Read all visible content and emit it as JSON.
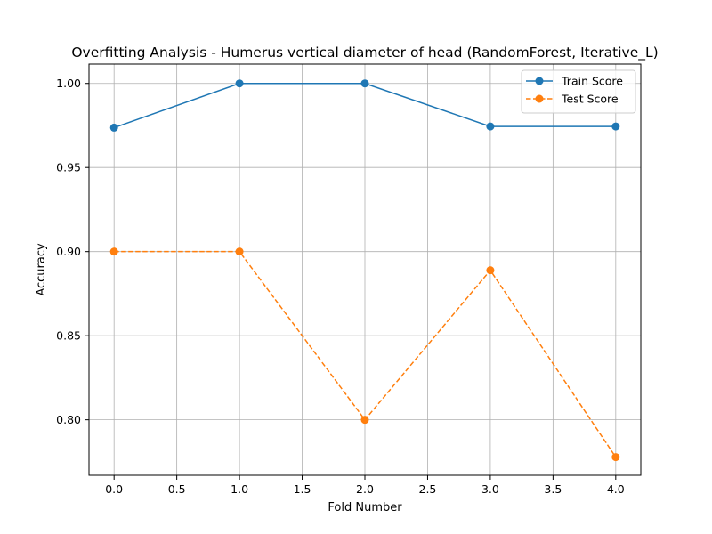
{
  "chart_data": {
    "type": "line",
    "title": "Overfitting Analysis - Humerus vertical diameter of head (RandomForest, Iterative_L)",
    "xlabel": "Fold Number",
    "ylabel": "Accuracy",
    "xlim": [
      -0.2,
      4.2
    ],
    "ylim": [
      0.767,
      1.0115
    ],
    "xticks": [
      0.0,
      0.5,
      1.0,
      1.5,
      2.0,
      2.5,
      3.0,
      3.5,
      4.0
    ],
    "xtick_labels": [
      "0.0",
      "0.5",
      "1.0",
      "1.5",
      "2.0",
      "2.5",
      "3.0",
      "3.5",
      "4.0"
    ],
    "yticks": [
      0.8,
      0.85,
      0.9,
      0.95,
      1.0
    ],
    "ytick_labels": [
      "0.80",
      "0.85",
      "0.90",
      "0.95",
      "1.00"
    ],
    "grid": true,
    "legend_position": "top-right",
    "x": [
      0,
      1,
      2,
      3,
      4
    ],
    "series": [
      {
        "name": "Train Score",
        "values": [
          0.9737,
          1.0,
          1.0,
          0.9744,
          0.9744
        ],
        "color": "#1f77b4",
        "line_style": "solid",
        "marker": "circle"
      },
      {
        "name": "Test Score",
        "values": [
          0.9,
          0.9,
          0.8,
          0.8889,
          0.7778
        ],
        "color": "#ff7f0e",
        "line_style": "dashed",
        "marker": "circle"
      }
    ]
  }
}
